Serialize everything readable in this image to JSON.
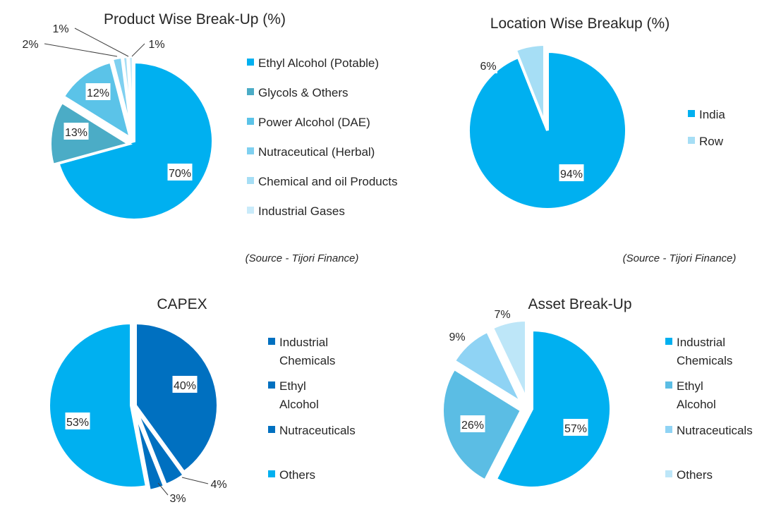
{
  "sources": [
    "(Source  - Tijori Finance)",
    "(Source  - Tijori Finance)"
  ],
  "chart_data": [
    {
      "type": "pie",
      "title": "Product Wise Break-Up (%)",
      "categories": [
        "Ethyl Alcohol (Potable)",
        "Glycols & Others",
        "Power Alcohol (DAE)",
        "Nutraceutical (Herbal)",
        "Chemical and oil Products",
        "Industrial Gases"
      ],
      "values": [
        70,
        13,
        12,
        2,
        1,
        1
      ],
      "labels": [
        "70%",
        "13%",
        "12%",
        "2%",
        "1%",
        "1%"
      ],
      "colors": [
        "#00b0f0",
        "#4bacc6",
        "#5bc3e8",
        "#7fd0f0",
        "#a6def5",
        "#c9ebfa"
      ],
      "legend_position": "right"
    },
    {
      "type": "pie",
      "title": "Location Wise Breakup (%)",
      "categories": [
        "India",
        "Row"
      ],
      "values": [
        94,
        6
      ],
      "labels": [
        "94%",
        "6%"
      ],
      "colors": [
        "#00b0f0",
        "#a6def5"
      ],
      "legend_position": "right"
    },
    {
      "type": "pie",
      "title": "CAPEX",
      "categories": [
        "Industrial Chemicals",
        "Ethyl Alcohol",
        "Nutraceuticals",
        "Others"
      ],
      "values": [
        40,
        4,
        3,
        53
      ],
      "labels": [
        "40%",
        "4%",
        "3%",
        "53%"
      ],
      "colors": [
        "#0070c0",
        "#0070c0",
        "#0070c0",
        "#00b0f0"
      ],
      "legend_position": "right"
    },
    {
      "type": "pie",
      "title": "Asset Break-Up",
      "categories": [
        "Industrial Chemicals",
        "Ethyl Alcohol",
        "Nutraceuticals",
        "Others"
      ],
      "values": [
        57,
        26,
        9,
        7
      ],
      "labels": [
        "57%",
        "26%",
        "9%",
        "7%"
      ],
      "colors": [
        "#00b0f0",
        "#5bbde4",
        "#8fd3f4",
        "#bde6f8"
      ],
      "legend_position": "right"
    }
  ]
}
